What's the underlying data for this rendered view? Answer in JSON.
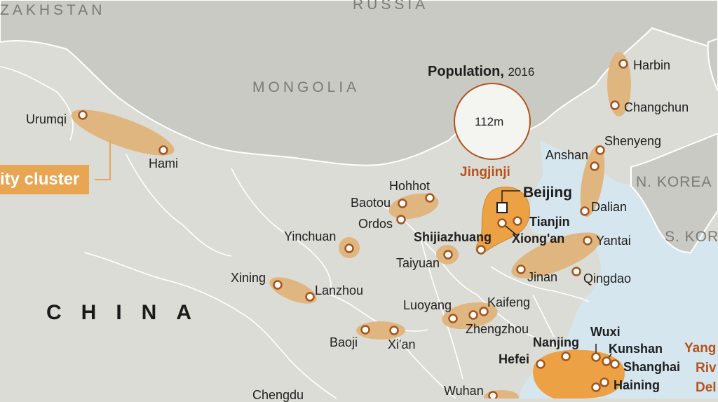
{
  "countries": {
    "kazakhstan": "ZAKHSTAN",
    "russia": "RUSSIA",
    "mongolia": "MONGOLIA",
    "china": "CHINA",
    "n_korea": "N. KOREA",
    "s_korea": "S. KOR"
  },
  "legend": {
    "title": "Population,",
    "year": "2016",
    "circle_value": "112m",
    "cluster_label": "ity cluster"
  },
  "regions": {
    "jingjinji": "Jingjinji",
    "yangtze_1": "Yang",
    "yangtze_2": "Riv",
    "yangtze_3": "Del"
  },
  "cities": {
    "urumqi": "Urumqi",
    "hami": "Hami",
    "harbin": "Harbin",
    "changchun": "Changchun",
    "shenyeng": "Shenyeng",
    "anshan": "Anshan",
    "dalian": "Dalian",
    "beijing": "Beijing",
    "tianjin": "Tianjin",
    "xiongan": "Xiong'an",
    "shijiazhuang": "Shijiazhuang",
    "hohhot": "Hohhot",
    "baotou": "Baotou",
    "ordos": "Ordos",
    "yinchuan": "Yinchuan",
    "taiyuan": "Taiyuan",
    "yantai": "Yantai",
    "jinan": "Jinan",
    "qingdao": "Qingdao",
    "xining": "Xining",
    "lanzhou": "Lanzhou",
    "luoyang": "Luoyang",
    "kaifeng": "Kaifeng",
    "zhengzhou": "Zhengzhou",
    "baoji": "Baoji",
    "xian": "Xi'an",
    "wuxi": "Wuxi",
    "nanjing": "Nanjing",
    "kunshan": "Kunshan",
    "hefei": "Hefei",
    "shanghai": "Shanghai",
    "haining": "Haining",
    "chengdu": "Chengdu",
    "wuhan": "Wuhan"
  },
  "colors": {
    "land_china": "#dcdcd6",
    "land_other": "#cacac4",
    "sea": "#d6e6ee",
    "cluster_fill": "#e0b680",
    "jingjinji_fill": "#eba144",
    "marker_stroke": "#a3541d",
    "region_label": "#b4531c",
    "badge": "#e8a552"
  }
}
